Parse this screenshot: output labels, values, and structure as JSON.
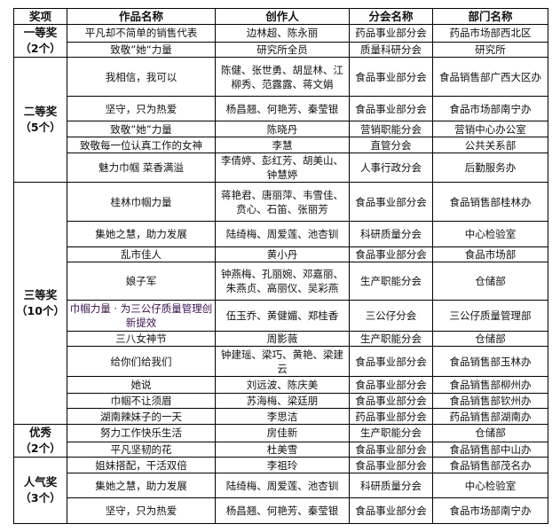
{
  "header": [
    "奖项",
    "作品名称",
    "创作人",
    "分会名称",
    "部门名称"
  ],
  "groups": [
    {
      "award": "一等奖",
      "count": "（2个）",
      "rows": [
        [
          "平凡却不简单的销售代表",
          "边林超、陈永丽",
          "药品事业部分会",
          "药品市场部西北区"
        ],
        [
          "致敬”她“力量",
          "研究所全员",
          "质量科研分会",
          "研究所"
        ]
      ]
    },
    {
      "award": "二等奖",
      "count": "（5个）",
      "rows": [
        [
          "我相信，我可以",
          "陈健、张世勇、胡显林、江柳秀、范露露、蒋文娟",
          "食品事业部分会",
          "食品销售部广西大区办"
        ],
        [
          "坚守，只为热爱",
          "杨昌翘、何艳芳、秦莹银",
          "食品事业部分会",
          "食品市场部南宁办"
        ],
        [
          "致敬”她”力量",
          "陈晓丹",
          "营销职能分会",
          "营销中心办公室"
        ],
        [
          "致敬每一位认真工作的女神",
          "李慧",
          "直管分会",
          "公共关系部"
        ],
        [
          "魅力巾帼 菜香满溢",
          "李倩婷、彭红芳、胡美山、钟慧婷",
          "人事行政分会",
          "后勤服务办"
        ]
      ]
    },
    {
      "award": "三等奖",
      "count": "（10个）",
      "rows": [
        [
          "桂林巾帼力量",
          "蒋艳君、唐丽萍、韦雪佳、贲心、石笛、张丽芳",
          "食品事业部分会",
          "食品销售部桂林办"
        ],
        [
          "集她之慧，助力发展",
          "陆绮梅、周爱莲、池杏钏",
          "科研质量分会",
          "中心检验室"
        ],
        [
          "乱市佳人",
          "黄小丹",
          "食品事业部分会",
          "食品市场部"
        ],
        [
          "娘子军",
          "钟燕梅、孔丽婉、邓嘉丽、朱燕贞、高丽仪、吴彩燕",
          "生产职能分会",
          "仓储部"
        ],
        [
          "巾帼力量 · 为三公仔质量管理创新提效",
          "伍玉乔、黄健媚、郑桂香",
          "三公仔分会",
          "三公仔质量管理部"
        ],
        [
          "三八女神节",
          "周影薇",
          "生产职能分会",
          "仓储部"
        ],
        [
          "给你们给我们",
          "钟建瑶、梁巧、黄艳、梁建云",
          "食品事业部分会",
          "食品销售部玉林办"
        ],
        [
          "她说",
          "刘远波、陈庆美",
          "食品事业部分会",
          "食品销售部柳州办"
        ],
        [
          "巾帼不让须眉",
          "苏海梅、梁廷朋",
          "食品事业部分会",
          "食品销售部钦州办"
        ],
        [
          "湖南辣妹子的一天",
          "李思洁",
          "药品事业部分会",
          "药品销售部湖南办"
        ]
      ]
    },
    {
      "award": "优秀",
      "count": "（2个）",
      "rows": [
        [
          "努力工作快乐生活",
          "房佳新",
          "生产职能分会",
          "仓储部"
        ],
        [
          "平凡坚韧的花",
          "杜美雪",
          "食品事业部分会",
          "食品销售部中山办"
        ]
      ]
    },
    {
      "award": "人气奖",
      "count": "（3个）",
      "rows": [
        [
          "姐妹搭配，干活双倍",
          "李祖玲",
          "食品事业部分会",
          "食品销售部茂名办"
        ],
        [
          "集她之慧，助力发展",
          "陆绮梅、周爱莲、池杏钏",
          "科研质量分会",
          "中心检验室"
        ],
        [
          "坚守，只为热爱",
          "杨昌翘、何艳芳、秦莹银",
          "食品事业部分会",
          "食品市场部南宁办"
        ]
      ]
    }
  ]
}
